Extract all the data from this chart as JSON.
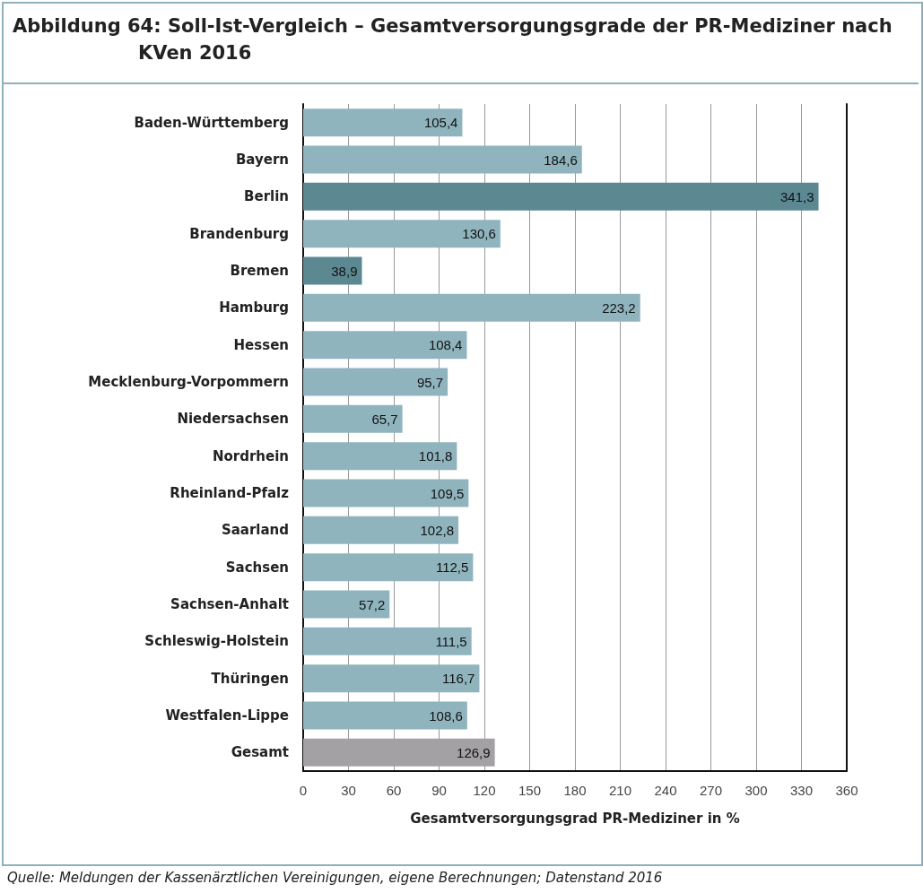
{
  "chart_data": {
    "type": "bar",
    "orientation": "horizontal",
    "title": "Abbildung 64: Soll-Ist-Vergleich – Gesamtversorgungsgrade der PR-Mediziner nach KVen 2016",
    "categories": [
      "Baden-Württemberg",
      "Bayern",
      "Berlin",
      "Brandenburg",
      "Bremen",
      "Hamburg",
      "Hessen",
      "Mecklenburg-Vorpommern",
      "Niedersachsen",
      "Nordrhein",
      "Rheinland-Pfalz",
      "Saarland",
      "Sachsen",
      "Sachsen-Anhalt",
      "Schleswig-Holstein",
      "Thüringen",
      "Westfalen-Lippe",
      "Gesamt"
    ],
    "values": [
      105.4,
      184.6,
      341.3,
      130.6,
      38.9,
      223.2,
      108.4,
      95.7,
      65.7,
      101.8,
      109.5,
      102.8,
      112.5,
      57.2,
      111.5,
      116.7,
      108.6,
      126.9
    ],
    "colors": [
      "#8fb4be",
      "#8fb4be",
      "#5c8892",
      "#8fb4be",
      "#5c8892",
      "#8fb4be",
      "#8fb4be",
      "#8fb4be",
      "#8fb4be",
      "#8fb4be",
      "#8fb4be",
      "#8fb4be",
      "#8fb4be",
      "#8fb4be",
      "#8fb4be",
      "#8fb4be",
      "#8fb4be",
      "#a3a1a3"
    ],
    "value_labels": [
      "105,4",
      "184,6",
      "341,3",
      "130,6",
      "38,9",
      "223,2",
      "108,4",
      "95,7",
      "65,7",
      "101,8",
      "109,5",
      "102,8",
      "112,5",
      "57,2",
      "111,5",
      "116,7",
      "108,6",
      "126,9"
    ],
    "xlabel": "Gesamtversorgungsgrad PR-Mediziner in %",
    "xlim": [
      0,
      360
    ],
    "xticks": [
      0,
      30,
      60,
      90,
      120,
      150,
      180,
      210,
      240,
      270,
      300,
      330,
      360
    ],
    "grid": "x",
    "annotations": [
      "Quelle: Meldungen der Kassenärztlichen Vereinigungen, eigene Berechnungen; Datenstand 2016"
    ]
  }
}
